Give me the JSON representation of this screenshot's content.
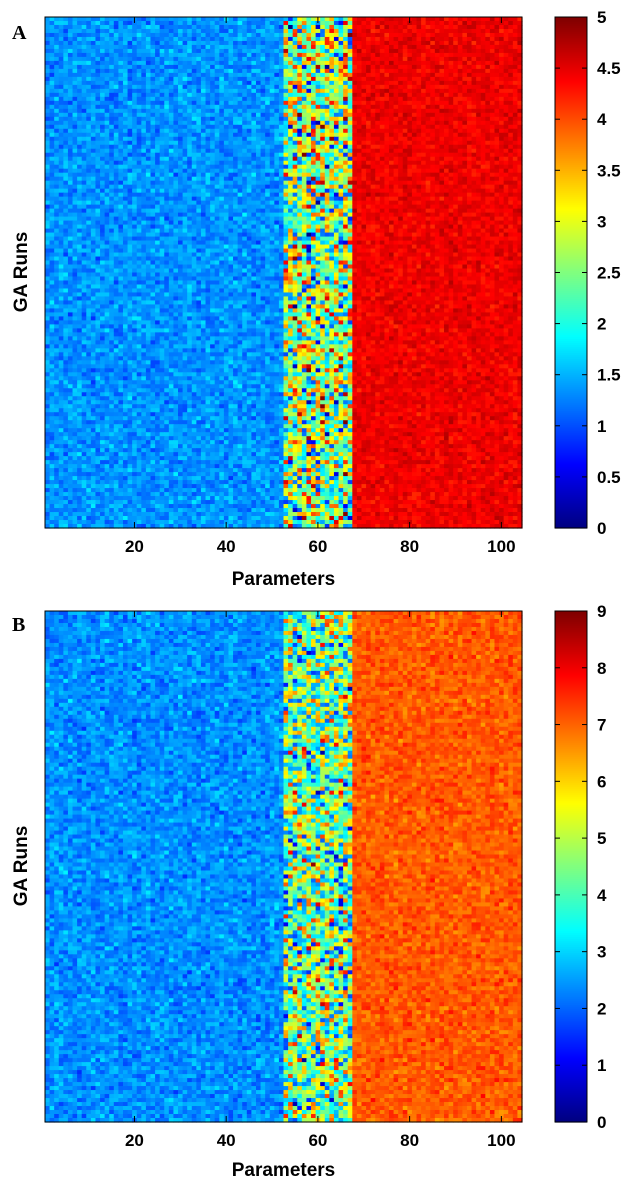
{
  "chart_data": [
    {
      "panel_label": "A",
      "type": "heatmap",
      "xlabel": "Parameters",
      "ylabel": "GA Runs",
      "x_range": [
        1,
        104
      ],
      "x_ticks": [
        20,
        40,
        60,
        80,
        100
      ],
      "x_tick_labels": [
        "20",
        "40",
        "60",
        "80",
        "100"
      ],
      "y_tick_labels": [],
      "colorbar": {
        "colormap": "jet",
        "range": [
          0,
          5
        ],
        "ticks": [
          0,
          0.5,
          1,
          1.5,
          2,
          2.5,
          3,
          3.5,
          4,
          4.5,
          5
        ],
        "tick_labels": [
          "0",
          "0.5",
          "1",
          "1.5",
          "2",
          "2.5",
          "3",
          "3.5",
          "4",
          "4.5",
          "5"
        ]
      },
      "regions": [
        {
          "params": [
            1,
            52
          ],
          "mean": 1.35,
          "spread": 0.3
        },
        {
          "params": [
            53,
            67
          ],
          "mean": 2.6,
          "spread": 1.7
        },
        {
          "params": [
            68,
            104
          ],
          "mean": 4.45,
          "spread": 0.2
        }
      ]
    },
    {
      "panel_label": "B",
      "type": "heatmap",
      "xlabel": "Parameters",
      "ylabel": "GA Runs",
      "x_range": [
        1,
        104
      ],
      "x_ticks": [
        20,
        40,
        60,
        80,
        100
      ],
      "x_tick_labels": [
        "20",
        "40",
        "60",
        "80",
        "100"
      ],
      "y_tick_labels": [],
      "colorbar": {
        "colormap": "jet",
        "range": [
          0,
          9
        ],
        "ticks": [
          0,
          1,
          2,
          3,
          4,
          5,
          6,
          7,
          8,
          9
        ],
        "tick_labels": [
          "0",
          "1",
          "2",
          "3",
          "4",
          "5",
          "6",
          "7",
          "8",
          "9"
        ]
      },
      "regions": [
        {
          "params": [
            1,
            52
          ],
          "mean": 2.4,
          "spread": 0.55
        },
        {
          "params": [
            53,
            67
          ],
          "mean": 4.4,
          "spread": 2.7
        },
        {
          "params": [
            68,
            104
          ],
          "mean": 7.1,
          "spread": 0.45
        }
      ]
    }
  ]
}
